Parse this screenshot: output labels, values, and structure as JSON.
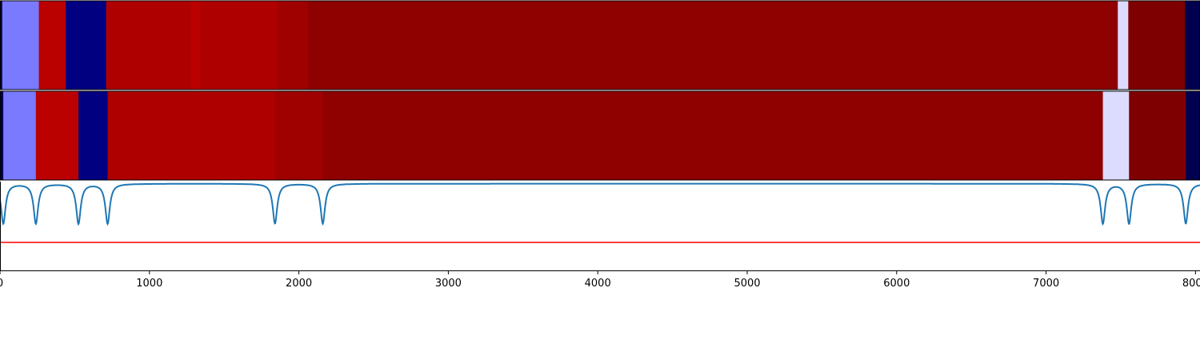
{
  "chart_data": {
    "type": "heatmap",
    "title": "",
    "xlabel": "",
    "ylabel": "",
    "xlim": [
      0,
      8030
    ],
    "grid": false,
    "x_ticks": [
      {
        "value": 0,
        "label": "0"
      },
      {
        "value": 1000,
        "label": "1000"
      },
      {
        "value": 2000,
        "label": "2000"
      },
      {
        "value": 3000,
        "label": "3000"
      },
      {
        "value": 4000,
        "label": "4000"
      },
      {
        "value": 5000,
        "label": "5000"
      },
      {
        "value": 6000,
        "label": "6000"
      },
      {
        "value": 7000,
        "label": "7000"
      },
      {
        "value": 8000,
        "label": "8000"
      }
    ],
    "segment_rows": [
      {
        "segments": [
          {
            "start": 0,
            "end": 15,
            "color": "#000060"
          },
          {
            "start": 15,
            "end": 260,
            "color": "#7a7aff"
          },
          {
            "start": 260,
            "end": 440,
            "color": "#bb0000"
          },
          {
            "start": 440,
            "end": 710,
            "color": "#000080"
          },
          {
            "start": 710,
            "end": 1280,
            "color": "#af0000"
          },
          {
            "start": 1280,
            "end": 1340,
            "color": "#bb0000"
          },
          {
            "start": 1340,
            "end": 1860,
            "color": "#af0000"
          },
          {
            "start": 1860,
            "end": 2060,
            "color": "#9f0000"
          },
          {
            "start": 2060,
            "end": 7480,
            "color": "#8f0000"
          },
          {
            "start": 7480,
            "end": 7550,
            "color": "#dcdcff"
          },
          {
            "start": 7550,
            "end": 7930,
            "color": "#7f0000"
          },
          {
            "start": 7930,
            "end": 8030,
            "color": "#000050"
          }
        ]
      },
      {
        "segments": [
          {
            "start": 0,
            "end": 22,
            "color": "#000060"
          },
          {
            "start": 22,
            "end": 240,
            "color": "#7a7aff"
          },
          {
            "start": 240,
            "end": 525,
            "color": "#bb0000"
          },
          {
            "start": 525,
            "end": 720,
            "color": "#000080"
          },
          {
            "start": 720,
            "end": 1840,
            "color": "#af0000"
          },
          {
            "start": 1840,
            "end": 2160,
            "color": "#9f0000"
          },
          {
            "start": 2160,
            "end": 7380,
            "color": "#8f0000"
          },
          {
            "start": 7380,
            "end": 7555,
            "color": "#dcdcff"
          },
          {
            "start": 7555,
            "end": 7935,
            "color": "#7f0000"
          },
          {
            "start": 7935,
            "end": 8030,
            "color": "#000050"
          }
        ]
      }
    ],
    "series": [
      {
        "type": "line",
        "color": "#1f77b4",
        "baseline": 0,
        "ylim": [
          -1.0,
          0.05
        ],
        "dips": [
          22,
          240,
          525,
          720,
          1840,
          2160,
          7380,
          7555,
          7935
        ],
        "dip_depth": -1.0
      },
      {
        "type": "hline",
        "color": "#ff0000",
        "value": -1.4
      }
    ]
  }
}
